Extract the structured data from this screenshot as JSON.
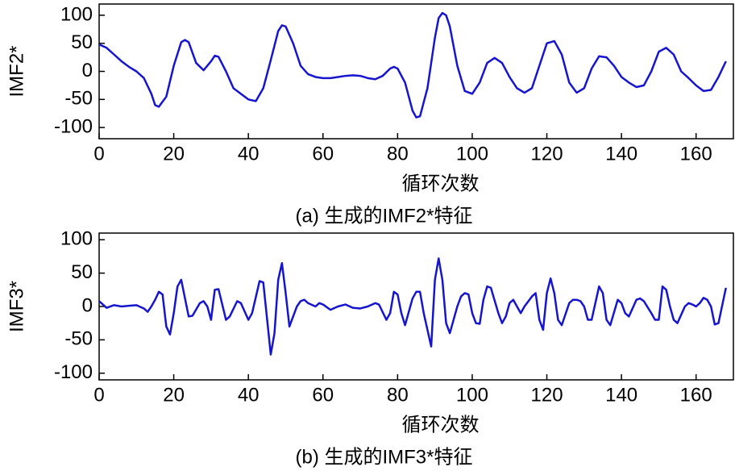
{
  "chart_data": [
    {
      "type": "line",
      "y_label": "IMF2*",
      "x_label": "循环次数",
      "caption": "(a) 生成的IMF2*特征",
      "color": "#1515d0",
      "xlim": [
        0,
        170
      ],
      "xticks": [
        0,
        20,
        40,
        60,
        80,
        100,
        120,
        140,
        160
      ],
      "ylim": [
        -120,
        120
      ],
      "yticks": [
        -100,
        -50,
        0,
        50,
        100
      ],
      "x": [
        0,
        2,
        4,
        6,
        8,
        10,
        12,
        14,
        15,
        16,
        18,
        20,
        22,
        23,
        24,
        26,
        28,
        30,
        31,
        32,
        34,
        36,
        38,
        40,
        42,
        44,
        46,
        48,
        49,
        50,
        52,
        54,
        56,
        58,
        60,
        62,
        64,
        66,
        68,
        70,
        72,
        74,
        76,
        78,
        79,
        80,
        82,
        84,
        85,
        86,
        88,
        90,
        91,
        92,
        93,
        94,
        96,
        98,
        100,
        102,
        104,
        106,
        108,
        110,
        112,
        114,
        116,
        118,
        120,
        122,
        124,
        126,
        128,
        130,
        132,
        134,
        136,
        138,
        140,
        142,
        144,
        146,
        148,
        150,
        152,
        154,
        156,
        158,
        160,
        162,
        164,
        166,
        168
      ],
      "values": [
        48,
        42,
        30,
        18,
        8,
        0,
        -12,
        -40,
        -60,
        -63,
        -45,
        10,
        52,
        56,
        52,
        15,
        2,
        18,
        28,
        26,
        0,
        -30,
        -40,
        -50,
        -53,
        -30,
        20,
        72,
        82,
        80,
        50,
        10,
        -5,
        -10,
        -12,
        -12,
        -10,
        -8,
        -7,
        -8,
        -12,
        -14,
        -8,
        5,
        8,
        5,
        -20,
        -70,
        -82,
        -80,
        -30,
        60,
        95,
        104,
        100,
        80,
        10,
        -35,
        -40,
        -20,
        15,
        24,
        15,
        -10,
        -30,
        -38,
        -30,
        10,
        50,
        54,
        30,
        -20,
        -38,
        -30,
        5,
        27,
        25,
        10,
        -10,
        -20,
        -28,
        -25,
        0,
        35,
        42,
        30,
        0,
        -12,
        -25,
        -35,
        -33,
        -10,
        18
      ]
    },
    {
      "type": "line",
      "y_label": "IMF3*",
      "x_label": "循环次数",
      "caption": "(b) 生成的IMF3*特征",
      "color": "#1515d0",
      "xlim": [
        0,
        170
      ],
      "xticks": [
        0,
        20,
        40,
        60,
        80,
        100,
        120,
        140,
        160
      ],
      "ylim": [
        -110,
        110
      ],
      "yticks": [
        -100,
        -50,
        0,
        50,
        100
      ],
      "x": [
        0,
        2,
        4,
        6,
        8,
        10,
        12,
        13,
        14,
        15,
        16,
        17,
        18,
        19,
        20,
        21,
        22,
        24,
        25,
        27,
        28,
        29,
        30,
        31,
        32,
        34,
        35,
        37,
        38,
        40,
        41,
        43,
        44,
        46,
        47,
        48,
        49,
        50,
        51,
        53,
        54,
        55,
        56,
        58,
        59,
        60,
        62,
        64,
        66,
        68,
        70,
        72,
        74,
        75,
        77,
        78,
        79,
        80,
        81,
        82,
        84,
        85,
        86,
        87,
        89,
        90,
        91,
        92,
        93,
        94,
        96,
        97,
        98,
        99,
        100,
        101,
        102,
        103,
        104,
        105,
        107,
        108,
        109,
        110,
        111,
        113,
        114,
        116,
        117,
        118,
        119,
        120,
        121,
        122,
        123,
        124,
        126,
        127,
        128,
        129,
        130,
        131,
        132,
        134,
        135,
        136,
        137,
        139,
        140,
        141,
        142,
        144,
        145,
        146,
        148,
        149,
        150,
        151,
        152,
        153,
        154,
        155,
        157,
        158,
        159,
        160,
        161,
        162,
        163,
        164,
        165,
        166,
        168
      ],
      "values": [
        8,
        -2,
        2,
        0,
        1,
        2,
        -3,
        -8,
        0,
        10,
        22,
        18,
        -30,
        -42,
        -10,
        30,
        40,
        -15,
        -14,
        5,
        8,
        0,
        -20,
        25,
        26,
        -20,
        -15,
        8,
        5,
        -20,
        -10,
        38,
        36,
        -72,
        -40,
        40,
        65,
        20,
        -30,
        0,
        8,
        10,
        5,
        0,
        5,
        3,
        -5,
        0,
        3,
        -2,
        -3,
        0,
        5,
        3,
        -20,
        -10,
        22,
        18,
        -10,
        -28,
        12,
        22,
        22,
        -10,
        -60,
        40,
        72,
        40,
        -25,
        -40,
        0,
        15,
        20,
        18,
        -10,
        -25,
        -26,
        10,
        30,
        28,
        -10,
        -25,
        -15,
        5,
        10,
        -10,
        0,
        15,
        20,
        -20,
        -35,
        20,
        42,
        20,
        -20,
        -28,
        5,
        10,
        10,
        8,
        0,
        -20,
        -20,
        30,
        20,
        -20,
        -28,
        10,
        5,
        -10,
        -15,
        10,
        12,
        8,
        -10,
        -20,
        -20,
        30,
        25,
        0,
        -20,
        -25,
        0,
        5,
        3,
        0,
        5,
        13,
        10,
        0,
        -27,
        -25,
        28
      ]
    }
  ]
}
